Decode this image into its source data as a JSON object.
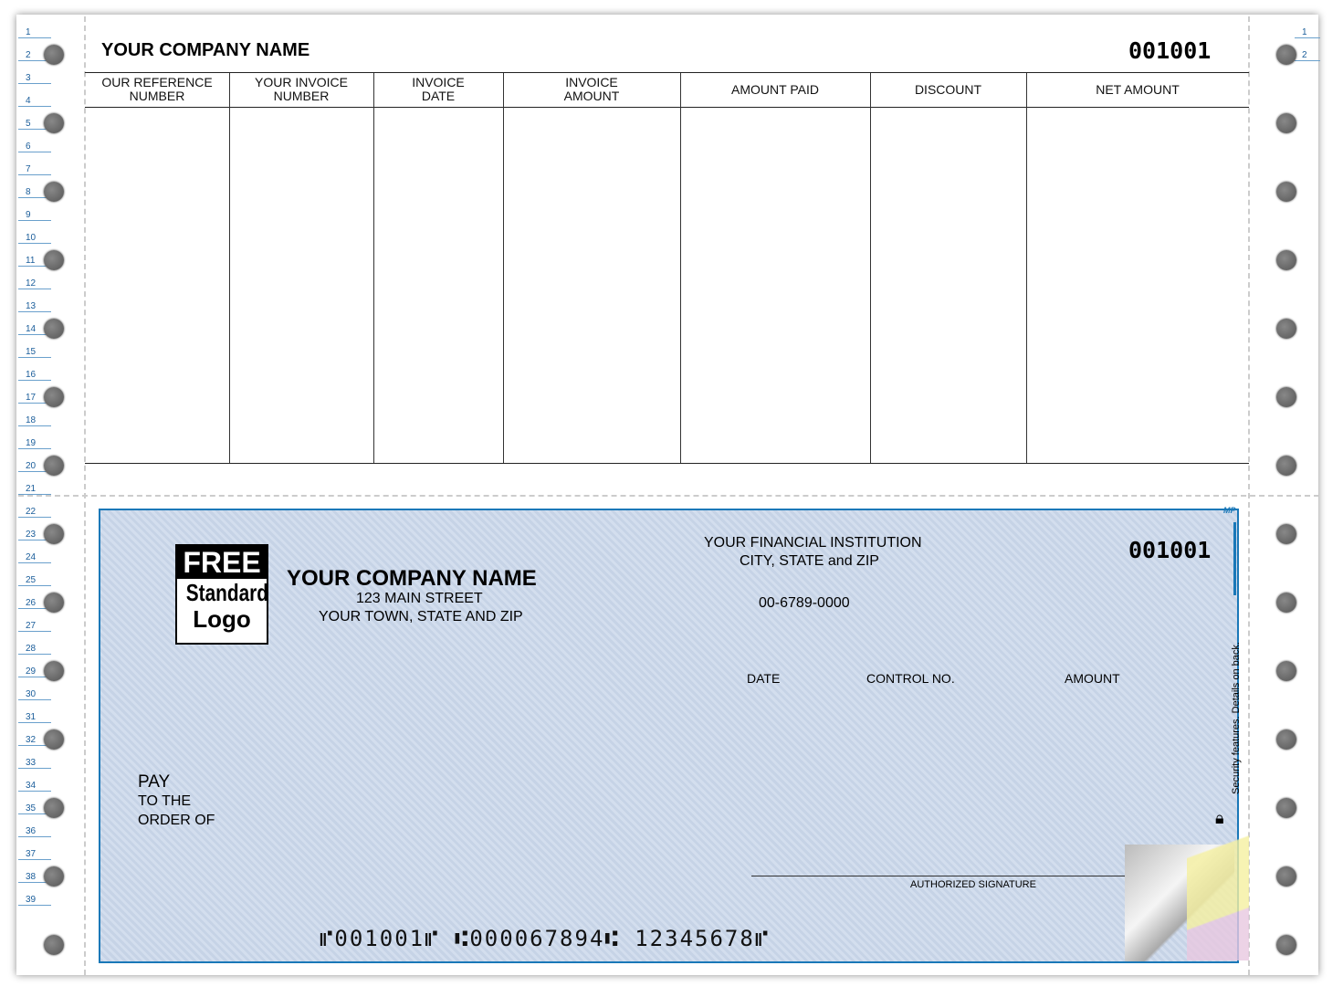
{
  "margin_numbers_left": [
    "1",
    "2",
    "3",
    "4",
    "5",
    "6",
    "7",
    "8",
    "9",
    "10",
    "11",
    "12",
    "13",
    "14",
    "15",
    "16",
    "17",
    "18",
    "19",
    "20",
    "21",
    "22",
    "23",
    "24",
    "25",
    "26",
    "27",
    "28",
    "29",
    "30",
    "31",
    "32",
    "33",
    "34",
    "35",
    "36",
    "37",
    "38",
    "39"
  ],
  "margin_numbers_right": [
    "1",
    "2"
  ],
  "stub": {
    "company_name": "YOUR COMPANY NAME",
    "check_number": "001001",
    "columns": [
      "OUR REFERENCE\nNUMBER",
      "YOUR INVOICE\nNUMBER",
      "INVOICE\nDATE",
      "INVOICE\nAMOUNT",
      "AMOUNT PAID",
      "DISCOUNT",
      "NET AMOUNT"
    ]
  },
  "check": {
    "logo_line1": "FREE",
    "logo_line2": "Standard",
    "logo_line3": "Logo",
    "company_name": "YOUR COMPANY NAME",
    "street": "123 MAIN STREET",
    "town": "YOUR TOWN, STATE AND ZIP",
    "bank_name": "YOUR FINANCIAL INSTITUTION",
    "bank_city": "CITY, STATE and ZIP",
    "fraction": "00-6789-0000",
    "check_number": "001001",
    "date_label": "DATE",
    "control_label": "CONTROL NO.",
    "amount_label": "AMOUNT",
    "pay_line1": "PAY",
    "pay_line2": "TO THE",
    "pay_line3": "ORDER OF",
    "signature_label": "AUTHORIZED SIGNATURE",
    "security_text": "Security features. Details on back.",
    "mp_mark": "MP",
    "micr": "⑈001001⑈  ⑆000067894⑆  12345678⑈"
  },
  "colors": {
    "check_bg": "#cfdbeb",
    "border_blue": "#1a78b8",
    "margin_number": "#1a5d9a"
  }
}
